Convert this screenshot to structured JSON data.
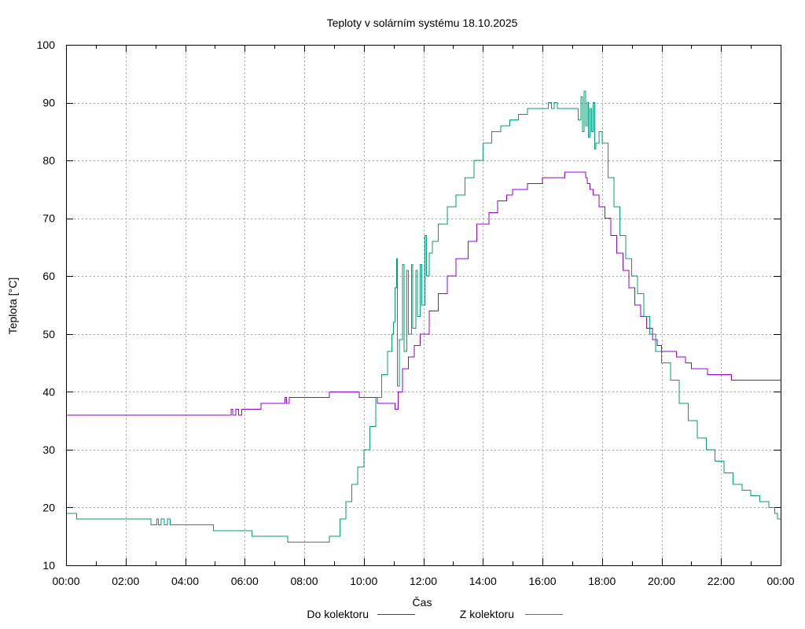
{
  "chart_data": {
    "type": "line",
    "title": "Teploty v solárním systému 18.10.2025",
    "xlabel": "Čas",
    "ylabel": "Teplota [°C]",
    "xlim": [
      0,
      24
    ],
    "ylim": [
      10,
      100
    ],
    "x_ticks": [
      0,
      2,
      4,
      6,
      8,
      10,
      12,
      14,
      16,
      18,
      20,
      22,
      24
    ],
    "x_tick_labels": [
      "00:00",
      "02:00",
      "04:00",
      "06:00",
      "08:00",
      "10:00",
      "12:00",
      "14:00",
      "16:00",
      "18:00",
      "20:00",
      "22:00",
      "00:00"
    ],
    "y_ticks": [
      10,
      20,
      30,
      40,
      50,
      60,
      70,
      80,
      90,
      100
    ],
    "y_tick_labels": [
      "10",
      "20",
      "30",
      "40",
      "50",
      "60",
      "70",
      "80",
      "90",
      "100"
    ],
    "grid": true,
    "legend_position": "bottom-center",
    "series": [
      {
        "name": "Do kolektoru",
        "color": "#9400d3",
        "points": [
          [
            0,
            36
          ],
          [
            5.5,
            36
          ],
          [
            5.55,
            37
          ],
          [
            5.6,
            36
          ],
          [
            5.7,
            37
          ],
          [
            5.8,
            36
          ],
          [
            5.9,
            37
          ],
          [
            6.5,
            37
          ],
          [
            6.55,
            38
          ],
          [
            7.3,
            38
          ],
          [
            7.35,
            39
          ],
          [
            7.4,
            38
          ],
          [
            7.5,
            39
          ],
          [
            8.8,
            39
          ],
          [
            8.85,
            40
          ],
          [
            9.8,
            40
          ],
          [
            9.85,
            39
          ],
          [
            10.4,
            39
          ],
          [
            10.45,
            38
          ],
          [
            11.0,
            38
          ],
          [
            11.05,
            37
          ],
          [
            11.1,
            37
          ],
          [
            11.15,
            40
          ],
          [
            11.3,
            44
          ],
          [
            11.5,
            46
          ],
          [
            11.7,
            48
          ],
          [
            11.9,
            50
          ],
          [
            12.2,
            54
          ],
          [
            12.5,
            57
          ],
          [
            12.8,
            60
          ],
          [
            13.1,
            63
          ],
          [
            13.5,
            66
          ],
          [
            13.8,
            69
          ],
          [
            14.2,
            71
          ],
          [
            14.5,
            73
          ],
          [
            14.8,
            74
          ],
          [
            15.0,
            75
          ],
          [
            15.3,
            75
          ],
          [
            15.5,
            76
          ],
          [
            15.8,
            76
          ],
          [
            16.0,
            77
          ],
          [
            16.7,
            77
          ],
          [
            16.75,
            78
          ],
          [
            17.4,
            78
          ],
          [
            17.45,
            77
          ],
          [
            17.5,
            76
          ],
          [
            17.6,
            75
          ],
          [
            17.7,
            74
          ],
          [
            17.8,
            74
          ],
          [
            17.9,
            72
          ],
          [
            18.1,
            70
          ],
          [
            18.3,
            67
          ],
          [
            18.5,
            64
          ],
          [
            18.7,
            61
          ],
          [
            18.9,
            58
          ],
          [
            19.1,
            55
          ],
          [
            19.3,
            53
          ],
          [
            19.5,
            51
          ],
          [
            19.7,
            49
          ],
          [
            19.85,
            48
          ],
          [
            20.0,
            47
          ],
          [
            20.4,
            47
          ],
          [
            20.5,
            46
          ],
          [
            20.8,
            45
          ],
          [
            20.9,
            45
          ],
          [
            21.0,
            44
          ],
          [
            21.5,
            44
          ],
          [
            21.55,
            43
          ],
          [
            22.3,
            43
          ],
          [
            22.35,
            42
          ],
          [
            24,
            42
          ]
        ]
      },
      {
        "name": "Z kolektoru",
        "color": "#009e73",
        "points": [
          [
            0,
            19
          ],
          [
            0.3,
            19
          ],
          [
            0.35,
            18
          ],
          [
            2.8,
            18
          ],
          [
            2.85,
            17
          ],
          [
            3.0,
            17
          ],
          [
            3.05,
            18
          ],
          [
            3.1,
            17
          ],
          [
            3.2,
            18
          ],
          [
            3.3,
            17
          ],
          [
            3.4,
            18
          ],
          [
            3.5,
            17
          ],
          [
            4.9,
            17
          ],
          [
            4.95,
            16
          ],
          [
            6.2,
            16
          ],
          [
            6.25,
            15
          ],
          [
            7.4,
            15
          ],
          [
            7.45,
            14
          ],
          [
            8.8,
            14
          ],
          [
            8.85,
            15
          ],
          [
            9.0,
            15
          ],
          [
            9.2,
            18
          ],
          [
            9.4,
            21
          ],
          [
            9.6,
            24
          ],
          [
            9.8,
            27
          ],
          [
            10.0,
            30
          ],
          [
            10.2,
            34
          ],
          [
            10.4,
            39
          ],
          [
            10.6,
            43
          ],
          [
            10.8,
            47
          ],
          [
            10.95,
            50
          ],
          [
            11.0,
            52
          ],
          [
            11.05,
            58
          ],
          [
            11.1,
            63
          ],
          [
            11.13,
            41
          ],
          [
            11.2,
            49
          ],
          [
            11.3,
            62
          ],
          [
            11.35,
            47
          ],
          [
            11.45,
            61
          ],
          [
            11.5,
            50
          ],
          [
            11.6,
            62
          ],
          [
            11.65,
            51
          ],
          [
            11.75,
            61
          ],
          [
            11.8,
            53
          ],
          [
            11.9,
            62
          ],
          [
            11.95,
            55
          ],
          [
            12.05,
            67
          ],
          [
            12.1,
            60
          ],
          [
            12.2,
            64
          ],
          [
            12.3,
            66
          ],
          [
            12.5,
            69
          ],
          [
            12.8,
            72
          ],
          [
            13.1,
            74
          ],
          [
            13.4,
            77
          ],
          [
            13.7,
            80
          ],
          [
            14.0,
            83
          ],
          [
            14.3,
            85
          ],
          [
            14.6,
            86
          ],
          [
            14.9,
            87
          ],
          [
            15.2,
            88
          ],
          [
            15.4,
            88
          ],
          [
            15.5,
            89
          ],
          [
            16.0,
            89
          ],
          [
            16.1,
            89
          ],
          [
            16.2,
            90
          ],
          [
            16.3,
            89
          ],
          [
            16.4,
            90
          ],
          [
            16.5,
            89
          ],
          [
            17.1,
            89
          ],
          [
            17.2,
            87
          ],
          [
            17.3,
            91
          ],
          [
            17.35,
            85
          ],
          [
            17.4,
            92
          ],
          [
            17.45,
            86
          ],
          [
            17.5,
            90
          ],
          [
            17.55,
            84
          ],
          [
            17.6,
            89
          ],
          [
            17.65,
            85
          ],
          [
            17.7,
            90
          ],
          [
            17.75,
            82
          ],
          [
            17.8,
            83
          ],
          [
            17.9,
            85
          ],
          [
            18.0,
            83
          ],
          [
            18.2,
            77
          ],
          [
            18.4,
            72
          ],
          [
            18.6,
            67
          ],
          [
            18.8,
            63
          ],
          [
            19.0,
            60
          ],
          [
            19.2,
            57
          ],
          [
            19.4,
            53
          ],
          [
            19.6,
            50
          ],
          [
            19.8,
            47
          ],
          [
            20.0,
            45
          ],
          [
            20.3,
            42
          ],
          [
            20.6,
            38
          ],
          [
            20.9,
            35
          ],
          [
            21.2,
            32
          ],
          [
            21.5,
            30
          ],
          [
            21.8,
            28
          ],
          [
            22.1,
            26
          ],
          [
            22.4,
            24
          ],
          [
            22.7,
            23
          ],
          [
            23.0,
            22
          ],
          [
            23.3,
            21
          ],
          [
            23.6,
            20
          ],
          [
            23.8,
            19
          ],
          [
            23.9,
            18
          ],
          [
            24,
            18
          ]
        ]
      }
    ]
  }
}
